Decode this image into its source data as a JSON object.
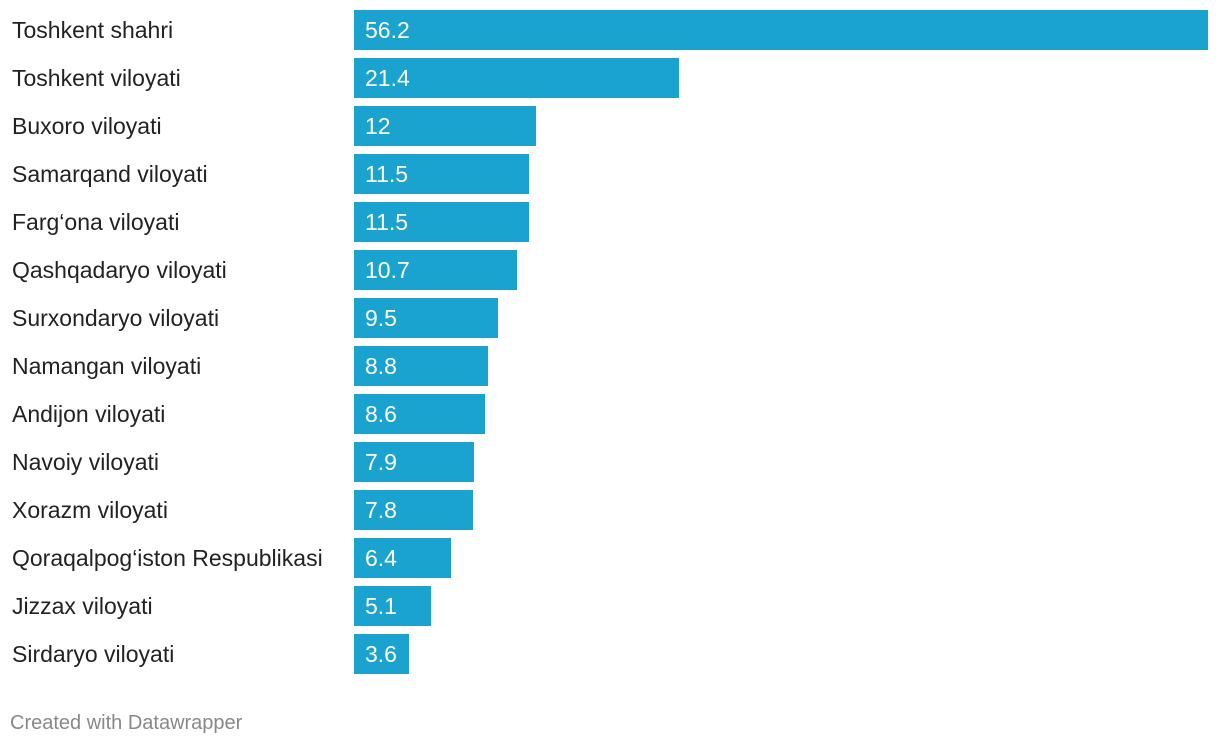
{
  "chart_data": {
    "type": "bar",
    "orientation": "horizontal",
    "categories": [
      "Toshkent shahri",
      "Toshkent viloyati",
      "Buxoro viloyati",
      "Samarqand viloyati",
      "Farg‘ona viloyati",
      "Qashqadaryo viloyati",
      "Surxondaryo viloyati",
      "Namangan viloyati",
      "Andijon viloyati",
      "Navoiy viloyati",
      "Xorazm viloyati",
      "Qoraqalpog‘iston Respublikasi",
      "Jizzax viloyati",
      "Sirdaryo viloyati"
    ],
    "values": [
      56.2,
      21.4,
      12,
      11.5,
      11.5,
      10.7,
      9.5,
      8.8,
      8.6,
      7.9,
      7.8,
      6.4,
      5.1,
      3.6
    ],
    "value_labels": [
      "56.2",
      "21.4",
      "12",
      "11.5",
      "11.5",
      "10.7",
      "9.5",
      "8.8",
      "8.6",
      "7.9",
      "7.8",
      "6.4",
      "5.1",
      "3.6"
    ],
    "xlim": [
      0,
      56.2
    ],
    "grid": false,
    "bar_color": "#1aa3cf"
  },
  "footer": {
    "credit": "Created with Datawrapper"
  }
}
